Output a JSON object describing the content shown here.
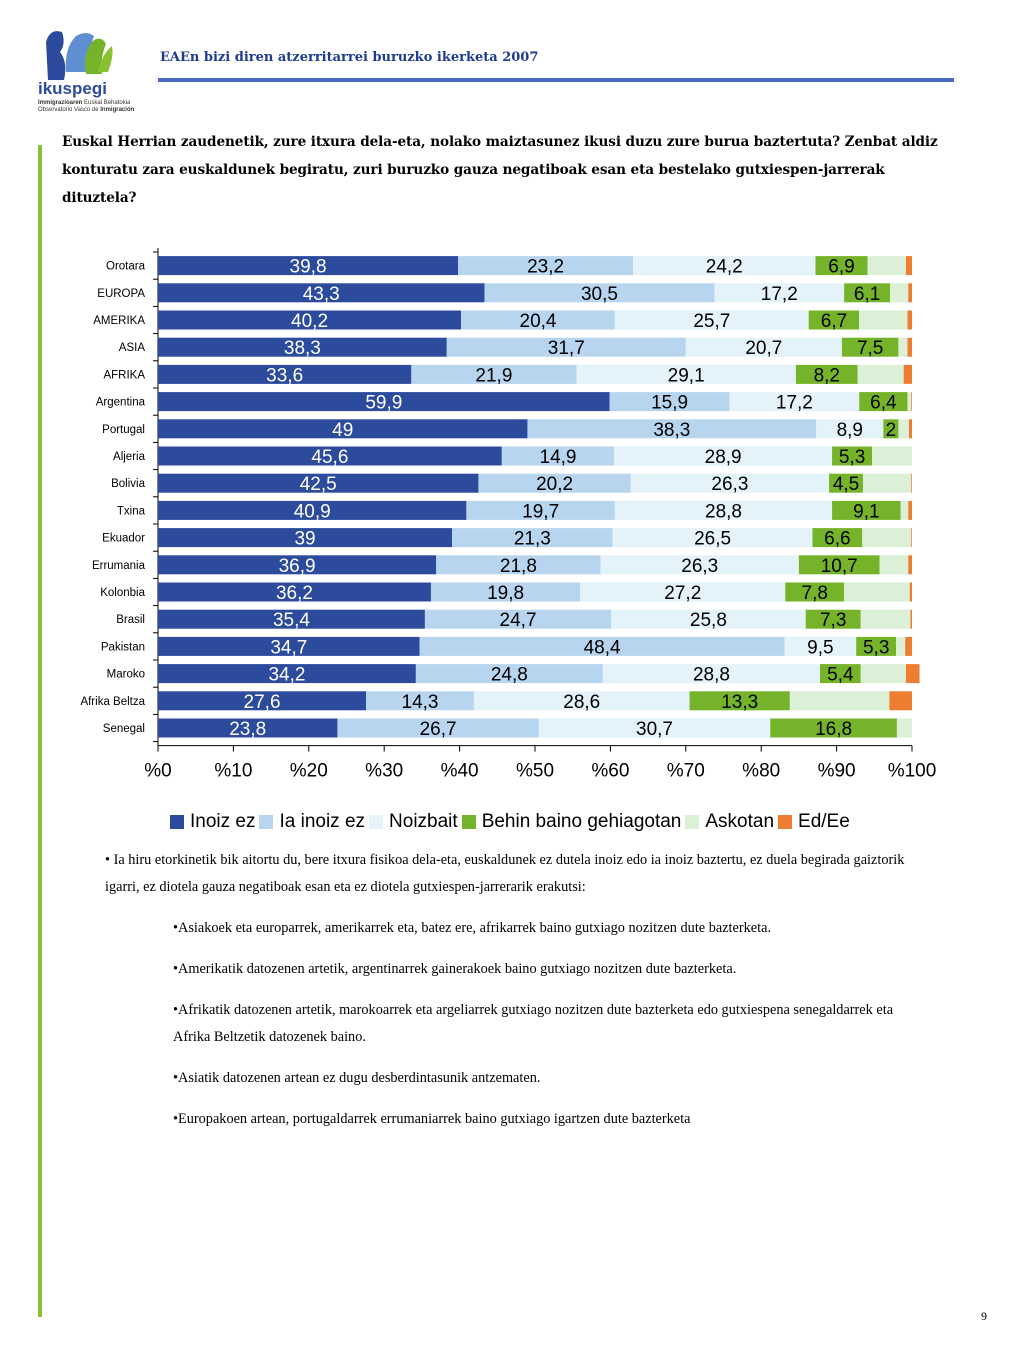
{
  "header": {
    "title": "EAEn bizi diren atzerritarrei buruzko ikerketa 2007"
  },
  "logo": {
    "name": "ikuspegi",
    "line1a": "Immigrazioaren",
    "line1b": " Euskal Behatokia",
    "line2a": "Observatorio Vasco de ",
    "line2b": "Inmigración"
  },
  "question": "Euskal Herrian zaudenetik, zure itxura dela-eta, nolako maiztasunez ikusi duzu zure burua baztertuta? Zenbat aldiz konturatu zara euskaldunek begiratu, zuri buruzko gauza negatiboak esan eta bestelako gutxiespen-jarrerak dituztela?",
  "chart_data": {
    "type": "bar",
    "orientation": "horizontal",
    "stacked": true,
    "categories": [
      "Orotara",
      "EUROPA",
      "AMERIKA",
      "ASIA",
      "AFRIKA",
      "Argentina",
      "Portugal",
      "Aljeria",
      "Bolivia",
      "Txina",
      "Ekuador",
      "Errumania",
      "Kolonbia",
      "Brasil",
      "Pakistan",
      "Maroko",
      "Afrika Beltza",
      "Senegal"
    ],
    "series": [
      {
        "name": "Inoiz ez",
        "color": "#2c4b9c",
        "values": [
          39.8,
          43.3,
          40.2,
          38.3,
          33.6,
          59.9,
          49,
          45.6,
          42.5,
          40.9,
          39,
          36.9,
          36.2,
          35.4,
          34.7,
          34.2,
          27.6,
          23.8
        ],
        "labels": [
          "39,8",
          "43,3",
          "40,2",
          "38,3",
          "33,6",
          "59,9",
          "49",
          "45,6",
          "42,5",
          "40,9",
          "39",
          "36,9",
          "36,2",
          "35,4",
          "34,7",
          "34,2",
          "27,6",
          "23,8"
        ]
      },
      {
        "name": "Ia inoiz ez",
        "color": "#b8d5ef",
        "values": [
          23.2,
          30.5,
          20.4,
          31.7,
          21.9,
          15.9,
          38.3,
          14.9,
          20.2,
          19.7,
          21.3,
          21.8,
          19.8,
          24.7,
          48.4,
          24.8,
          14.3,
          26.7
        ],
        "labels": [
          "23,2",
          "30,5",
          "20,4",
          "31,7",
          "21,9",
          "15,9",
          "38,3",
          "14,9",
          "20,2",
          "19,7",
          "21,3",
          "21,8",
          "19,8",
          "24,7",
          "48,4",
          "24,8",
          "14,3",
          "26,7"
        ]
      },
      {
        "name": "Noizbait",
        "color": "#e4f2fa",
        "values": [
          24.2,
          17.2,
          25.7,
          20.7,
          29.1,
          17.2,
          8.9,
          28.9,
          26.3,
          28.8,
          26.5,
          26.3,
          27.2,
          25.8,
          9.5,
          28.8,
          28.6,
          30.7
        ],
        "labels": [
          "24,2",
          "17,2",
          "25,7",
          "20,7",
          "29,1",
          "17,2",
          "8,9",
          "28,9",
          "26,3",
          "28,8",
          "26,5",
          "26,3",
          "27,2",
          "25,8",
          "9,5",
          "28,8",
          "28,6",
          "30,7"
        ]
      },
      {
        "name": "Behin baino gehiagotan",
        "color": "#74b32a",
        "values": [
          6.9,
          6.1,
          6.7,
          7.5,
          8.2,
          6.4,
          2,
          5.3,
          4.5,
          9.1,
          6.6,
          10.7,
          7.8,
          7.3,
          5.3,
          5.4,
          13.3,
          16.8
        ],
        "labels": [
          "6,9",
          "6,1",
          "6,7",
          "7,5",
          "8,2",
          "6,4",
          "2",
          "5,3",
          "4,5",
          "9,1",
          "6,6",
          "10,7",
          "7,8",
          "7,3",
          "5,3",
          "5,4",
          "13,3",
          "16,8"
        ]
      },
      {
        "name": "Askotan",
        "color": "#dcf0d8",
        "values": [
          5.1,
          2.4,
          6.4,
          1.2,
          6.1,
          0.5,
          1.4,
          5.3,
          6.4,
          1.0,
          6.5,
          3.8,
          8.7,
          6.6,
          1.2,
          6.0,
          13.2,
          2.0
        ]
      },
      {
        "name": "Ed/Ee",
        "color": "#ed7d31",
        "values": [
          0.8,
          0.5,
          0.6,
          0.6,
          1.1,
          0.1,
          0.4,
          0,
          0.1,
          0.5,
          0.1,
          0.5,
          0.3,
          0.2,
          0.9,
          1.8,
          3.0,
          0
        ]
      }
    ],
    "xlim": [
      0,
      100
    ],
    "xticks": [
      "%0",
      "%10",
      "%20",
      "%30",
      "%40",
      "%50",
      "%60",
      "%70",
      "%80",
      "%90",
      "%100"
    ],
    "legend_position": "bottom",
    "grid": false
  },
  "notes": {
    "intro": "• Ia hiru etorkinetik bik aitortu du, bere itxura fisikoa dela-eta, euskaldunek ez dutela inoiz edo ia inoiz baztertu, ez duela begirada gaiztorik igarri, ez diotela gauza negatiboak esan eta ez diotela gutxiespen-jarrerarik erakutsi:",
    "items": [
      "•Asiakoek eta europarrek, amerikarrek eta, batez ere, afrikarrek baino gutxiago nozitzen dute bazterketa.",
      "•Amerikatik datozenen artetik, argentinarrek gainerakoek baino gutxiago nozitzen dute bazterketa.",
      "•Afrikatik datozenen artetik, marokoarrek eta argeliarrek gutxiago nozitzen dute bazterketa edo gutxiespena senegaldarrek eta Afrika Beltzetik datozenek baino.",
      "•Asiatik datozenen artean ez dugu desberdintasunik antzematen.",
      "•Europakoen artean, portugaldarrek errumaniarrek baino gutxiago igartzen dute bazterketa"
    ]
  },
  "page_number": "9"
}
